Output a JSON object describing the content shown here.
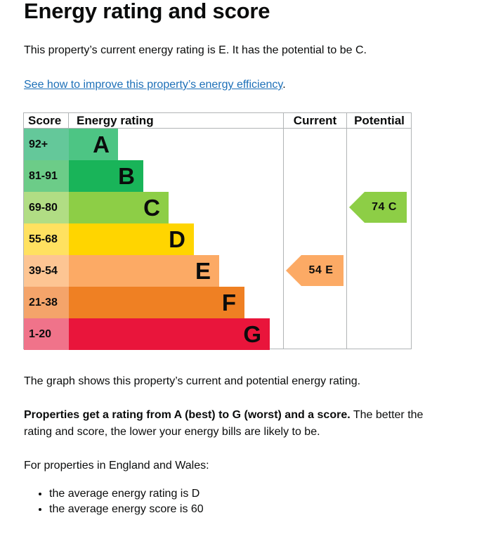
{
  "page": {
    "title": "Energy rating and score",
    "intro": "This property’s current energy rating is E. It has the potential to be C.",
    "improve_link": "See how to improve this property’s energy efficiency",
    "improve_suffix": ".",
    "graph_desc": "The graph shows this property’s current and potential energy rating.",
    "rating_info_bold": "Properties get a rating from A (best) to G (worst) and a score.",
    "rating_info_rest": " The better the rating and score, the lower your energy bills are likely to be.",
    "regional_heading": "For properties in England and Wales:",
    "averages": [
      "the average energy rating is D",
      "the average energy score is 60"
    ]
  },
  "chart_data": {
    "type": "bar",
    "headers": {
      "score": "Score",
      "rating": "Energy rating",
      "current": "Current",
      "potential": "Potential"
    },
    "bands": [
      {
        "score_range": "92+",
        "letter": "A",
        "color": "#4dc584",
        "score_color": "#64c89a"
      },
      {
        "score_range": "81-91",
        "letter": "B",
        "color": "#19b459",
        "score_color": "#6ccc88"
      },
      {
        "score_range": "69-80",
        "letter": "C",
        "color": "#8dce46",
        "score_color": "#b1dd84"
      },
      {
        "score_range": "55-68",
        "letter": "D",
        "color": "#ffd500",
        "score_color": "#ffe160"
      },
      {
        "score_range": "39-54",
        "letter": "E",
        "color": "#fcaa65",
        "score_color": "#fdc593"
      },
      {
        "score_range": "21-38",
        "letter": "F",
        "color": "#ef8023",
        "score_color": "#f4a46a"
      },
      {
        "score_range": "1-20",
        "letter": "G",
        "color": "#e9153b",
        "score_color": "#f0738a"
      }
    ],
    "current": {
      "score": 54,
      "letter": "E",
      "label": "54 E",
      "color": "#fcaa65"
    },
    "potential": {
      "score": 74,
      "letter": "C",
      "label": "74 C",
      "color": "#8dce46"
    }
  }
}
